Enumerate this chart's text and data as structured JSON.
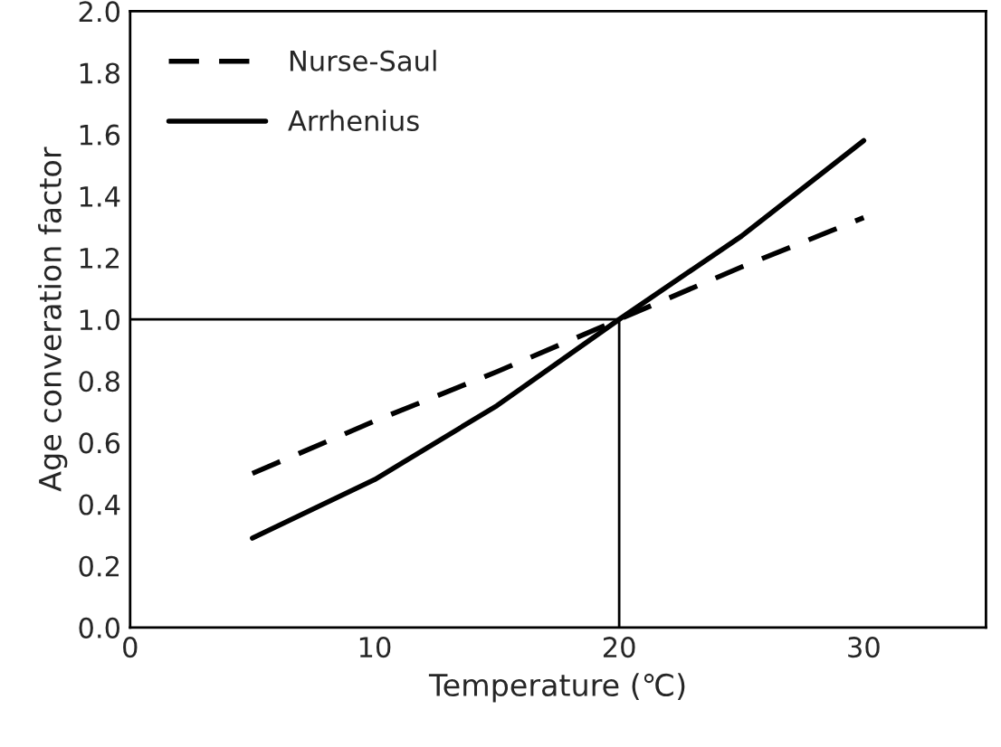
{
  "chart_data": {
    "type": "line",
    "xlabel": "Temperature (℃)",
    "ylabel": "Age converation factor",
    "series": [
      {
        "name": "Nurse-Saul",
        "color": "#000000",
        "line_style": "dashed",
        "x": [
          5,
          10,
          15,
          20,
          25,
          30
        ],
        "values": [
          0.5,
          0.67,
          0.83,
          1.0,
          1.17,
          1.33
        ]
      },
      {
        "name": "Arrhenius",
        "color": "#000000",
        "line_style": "solid",
        "x": [
          5,
          10,
          15,
          20,
          25,
          30
        ],
        "values": [
          0.29,
          0.48,
          0.72,
          1.0,
          1.27,
          1.58
        ]
      },
      {
        "color": "#000000",
        "line_style": "solid",
        "x": [
          0,
          20,
          20
        ],
        "values": [
          1.0,
          1.0,
          0
        ]
      }
    ],
    "xlim": [
      0,
      35
    ],
    "xticks": [
      0,
      10,
      20,
      30
    ],
    "ylim": [
      0,
      2.0
    ],
    "yticks": [
      {
        "value": 0,
        "label": "0.0"
      },
      {
        "value": 0.2,
        "label": "0.2"
      },
      {
        "value": 0.4,
        "label": "0.4"
      },
      {
        "value": 0.6,
        "label": "0.6"
      },
      {
        "value": 0.8,
        "label": "0.8"
      },
      {
        "value": 1.0,
        "label": "1.0"
      },
      {
        "value": 1.2,
        "label": "1.2"
      },
      {
        "value": 1.4,
        "label": "1.4"
      },
      {
        "value": 1.6,
        "label": "1.6"
      },
      {
        "value": 1.8,
        "label": "1.8"
      },
      {
        "value": 2.0,
        "label": "2.0"
      }
    ],
    "legend": "top left",
    "grid": false
  }
}
